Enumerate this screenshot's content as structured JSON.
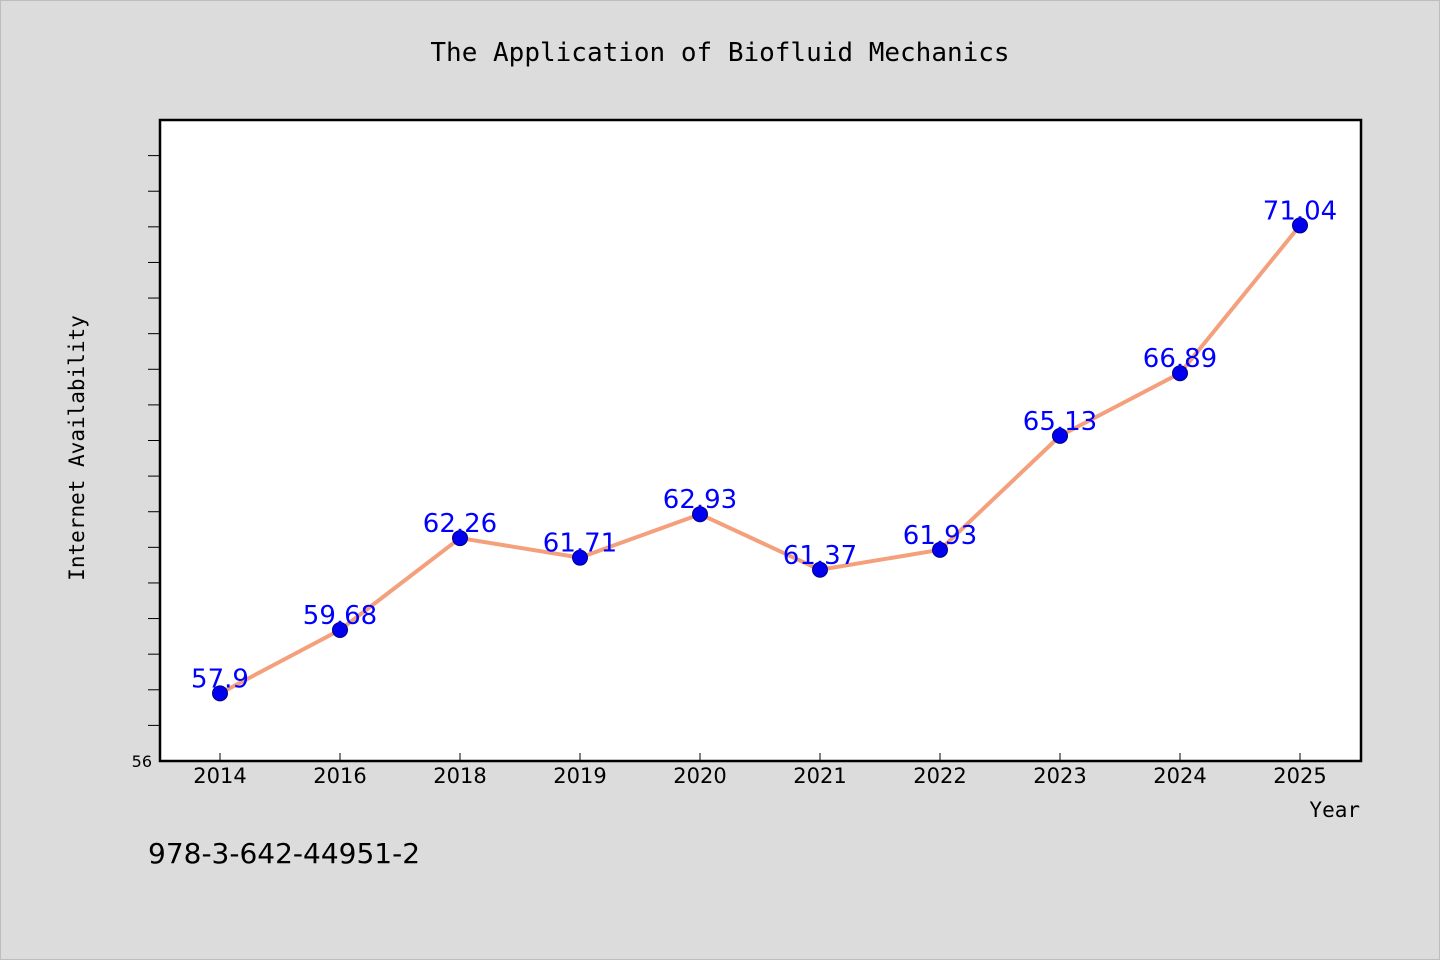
{
  "chart_data": {
    "type": "line",
    "title": "The Application of Biofluid Mechanics",
    "xlabel": "Year",
    "ylabel": "Internet Availability",
    "categories": [
      "2014",
      "2016",
      "2018",
      "2019",
      "2020",
      "2021",
      "2022",
      "2023",
      "2024",
      "2025"
    ],
    "series": [
      {
        "values": [
          57.9,
          59.68,
          62.26,
          61.71,
          62.93,
          61.37,
          61.93,
          65.13,
          66.89,
          71.04
        ]
      }
    ],
    "data_labels": [
      "57.9",
      "59.68",
      "62.26",
      "61.71",
      "62.93",
      "61.37",
      "61.93",
      "65.13",
      "66.89",
      "71.04"
    ],
    "ylim": [
      56,
      74
    ],
    "yticks_labeled": [
      "56"
    ],
    "grid": false,
    "legend": "none",
    "colors": {
      "line": "#f4a07c",
      "marker": "#0000ee",
      "marker_edge": "#000080",
      "label": "#0000ff",
      "plot_background": "#ffffff",
      "figure_background": "#dcdcdc"
    }
  },
  "footer": {
    "isbn": "978-3-642-44951-2"
  }
}
